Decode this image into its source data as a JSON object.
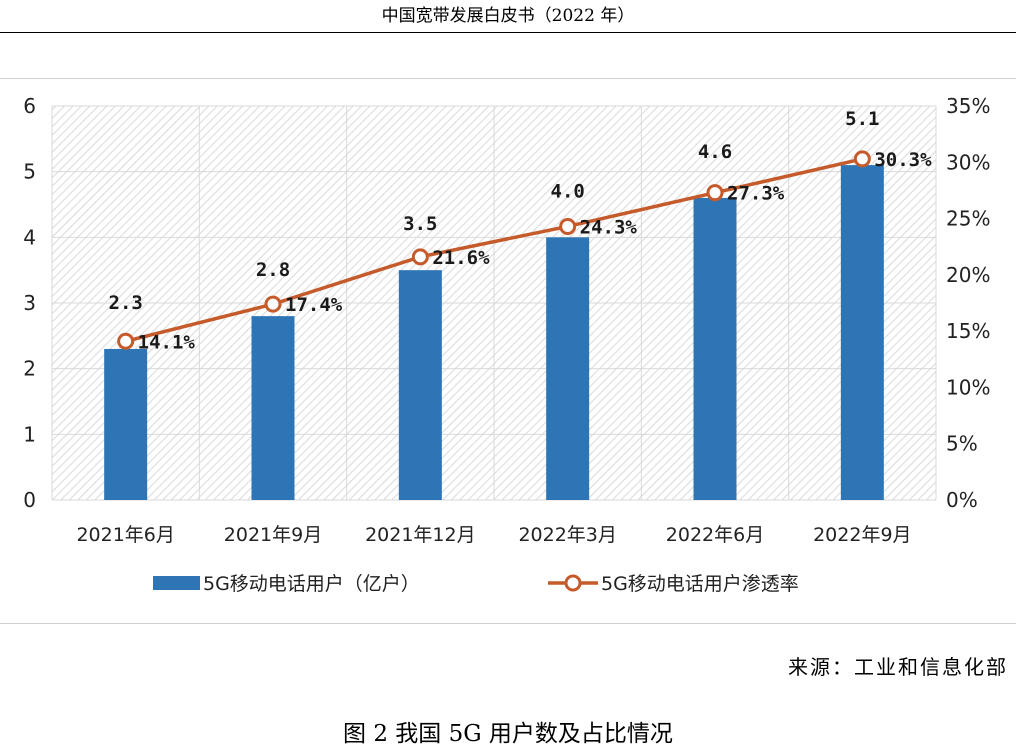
{
  "header": {
    "title": "中国宽带发展白皮书（2022 年）"
  },
  "source": "来源：工业和信息化部",
  "caption": "图 2 我国 5G 用户数及占比情况",
  "colors": {
    "bar": "#2e75b6",
    "line": "#c55a2b",
    "grid": "#d9d9d9"
  },
  "chart_data": {
    "type": "bar",
    "categories": [
      "2021年6月",
      "2021年9月",
      "2021年12月",
      "2022年3月",
      "2022年6月",
      "2022年9月"
    ],
    "series": [
      {
        "name": "5G移动电话用户（亿户）",
        "type": "bar",
        "axis": "left",
        "values": [
          2.3,
          2.8,
          3.5,
          4.0,
          4.6,
          5.1
        ],
        "labels": [
          "2.3",
          "2.8",
          "3.5",
          "4.0",
          "4.6",
          "5.1"
        ]
      },
      {
        "name": "5G移动电话用户渗透率",
        "type": "line",
        "axis": "right",
        "values": [
          14.1,
          17.4,
          21.6,
          24.3,
          27.3,
          30.3
        ],
        "labels": [
          "14.1%",
          "17.4%",
          "21.6%",
          "24.3%",
          "27.3%",
          "30.3%"
        ]
      }
    ],
    "ylim": [
      0,
      6
    ],
    "yticks": [
      "0",
      "1",
      "2",
      "3",
      "4",
      "5",
      "6"
    ],
    "y2lim": [
      0,
      35
    ],
    "y2ticks": [
      "0%",
      "5%",
      "10%",
      "15%",
      "20%",
      "25%",
      "30%",
      "35%"
    ],
    "grid": true,
    "legend_position": "bottom"
  }
}
